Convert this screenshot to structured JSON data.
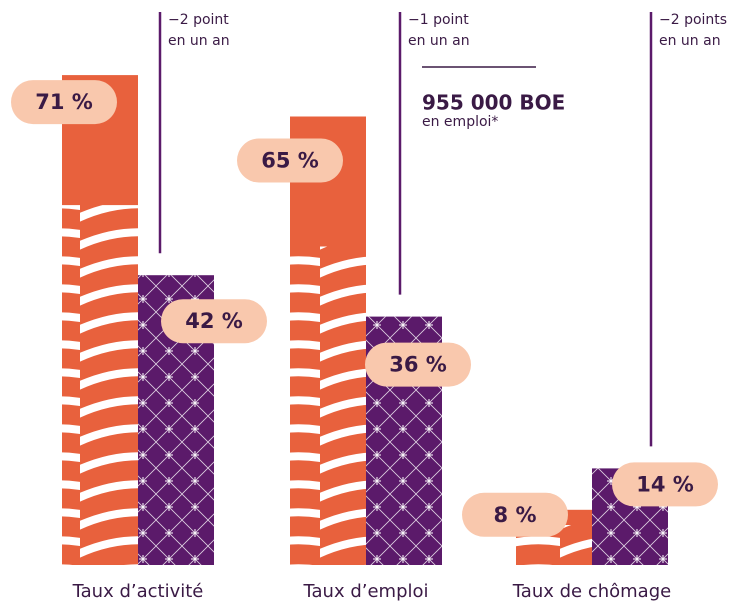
{
  "chart_data": {
    "type": "bar",
    "categories": [
      "Taux d’activité",
      "Taux d’emploi",
      "Taux de chômage"
    ],
    "series": [
      {
        "color": "#e8613d",
        "values": [
          71,
          65,
          8
        ],
        "value_labels": [
          "71 %",
          "65 %",
          "8 %"
        ]
      },
      {
        "color": "#5b1a6a",
        "values": [
          42,
          36,
          14
        ],
        "value_labels": [
          "42 %",
          "36 %",
          "14 %"
        ]
      }
    ],
    "annotations": [
      {
        "lines": [
          "−2 point",
          "en un an"
        ]
      },
      {
        "lines": [
          "−1 point",
          "en un an"
        ]
      },
      {
        "lines": [
          "−2 points",
          "en un an"
        ]
      }
    ],
    "callout": {
      "value": "955 000 BOE",
      "label": "en emploi*"
    }
  }
}
